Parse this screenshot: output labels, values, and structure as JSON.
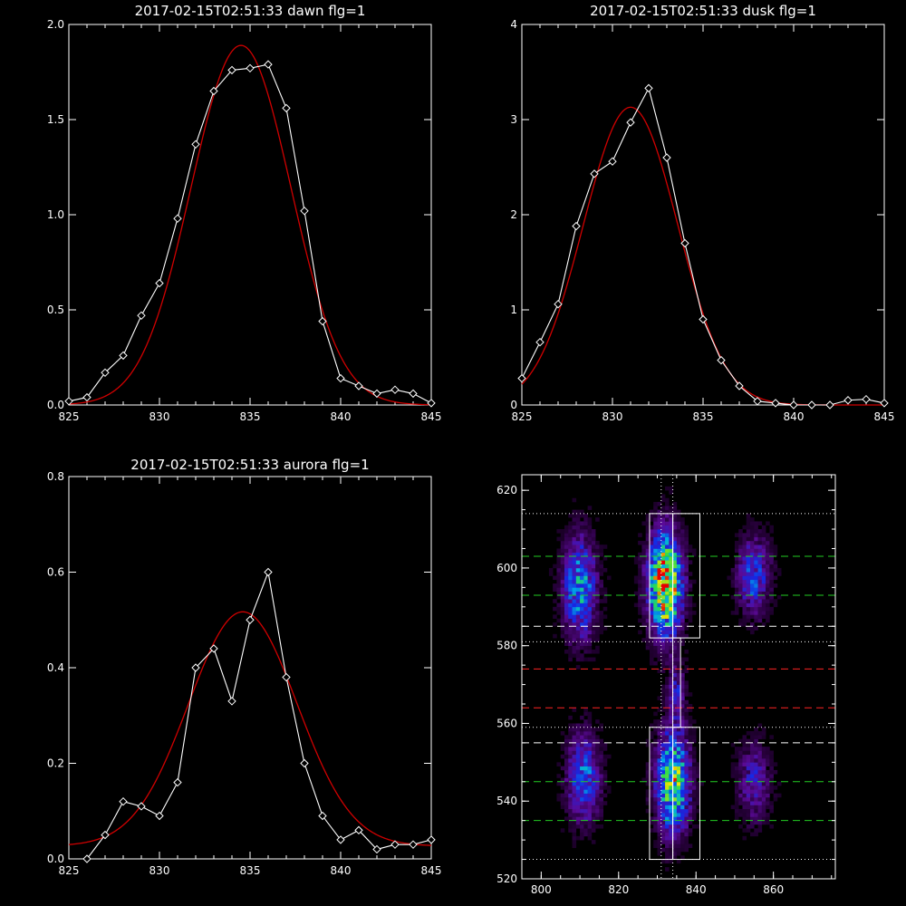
{
  "colors": {
    "background": "#000000",
    "axes": "#ffffff",
    "observed": "#ffffff",
    "fit": "#d00000",
    "green_band": "#22cc22",
    "red_band": "#ff2222",
    "white_band": "#ffffff"
  },
  "chart_data": [
    {
      "type": "line",
      "title": "2017-02-15T02:51:33 dawn flg=1",
      "xlim": [
        825,
        845
      ],
      "ylim": [
        0,
        2.0
      ],
      "xticks": [
        "825",
        "830",
        "835",
        "840",
        "845"
      ],
      "yticks": [
        "0.0",
        "0.5",
        "1.0",
        "1.5",
        "2.0"
      ],
      "xtick_values": [
        825,
        830,
        835,
        840,
        845
      ],
      "ytick_values": [
        0,
        0.5,
        1.0,
        1.5,
        2.0
      ],
      "observed": {
        "x": [
          825,
          826,
          827,
          828,
          829,
          830,
          831,
          832,
          833,
          834,
          835,
          836,
          837,
          838,
          839,
          840,
          841,
          842,
          843,
          844,
          845
        ],
        "y": [
          0.02,
          0.04,
          0.17,
          0.26,
          0.47,
          0.64,
          0.98,
          1.37,
          1.65,
          1.76,
          1.77,
          1.79,
          1.56,
          1.02,
          0.44,
          0.14,
          0.1,
          0.06,
          0.08,
          0.06,
          0.01
        ],
        "markers": "diamond"
      },
      "fit": {
        "model": "gaussian",
        "amplitude": 1.89,
        "center": 834.5,
        "sigma": 2.75,
        "offset": 0.0
      }
    },
    {
      "type": "line",
      "title": "2017-02-15T02:51:33 dusk flg=1",
      "xlim": [
        825,
        845
      ],
      "ylim": [
        0,
        4.0
      ],
      "xticks": [
        "825",
        "830",
        "835",
        "840",
        "845"
      ],
      "yticks": [
        "0",
        "1",
        "2",
        "3",
        "4"
      ],
      "xtick_values": [
        825,
        830,
        835,
        840,
        845
      ],
      "ytick_values": [
        0,
        1,
        2,
        3,
        4
      ],
      "observed": {
        "x": [
          825,
          826,
          827,
          828,
          829,
          830,
          831,
          832,
          833,
          834,
          835,
          836,
          837,
          838,
          839,
          840,
          841,
          842,
          843,
          844,
          845
        ],
        "y": [
          0.28,
          0.66,
          1.06,
          1.88,
          2.43,
          2.56,
          2.97,
          3.33,
          2.6,
          1.7,
          0.9,
          0.47,
          0.2,
          0.04,
          0.02,
          0.0,
          0.0,
          0.0,
          0.05,
          0.06,
          0.02
        ],
        "markers": "diamond"
      },
      "fit": {
        "model": "gaussian",
        "amplitude": 3.13,
        "center": 831.0,
        "sigma": 2.6,
        "offset": 0.0
      }
    },
    {
      "type": "line",
      "title": "2017-02-15T02:51:33 aurora flg=1",
      "xlim": [
        825,
        845
      ],
      "ylim": [
        0,
        0.8
      ],
      "xticks": [
        "825",
        "830",
        "835",
        "840",
        "845"
      ],
      "yticks": [
        "0.0",
        "0.2",
        "0.4",
        "0.6",
        "0.8"
      ],
      "xtick_values": [
        825,
        830,
        835,
        840,
        845
      ],
      "ytick_values": [
        0,
        0.2,
        0.4,
        0.6,
        0.8
      ],
      "observed": {
        "x": [
          826,
          827,
          828,
          829,
          830,
          831,
          832,
          833,
          834,
          835,
          836,
          837,
          838,
          839,
          840,
          841,
          842,
          843,
          844,
          845
        ],
        "y": [
          0.0,
          0.05,
          0.12,
          0.11,
          0.09,
          0.16,
          0.4,
          0.44,
          0.33,
          0.5,
          0.6,
          0.38,
          0.2,
          0.09,
          0.04,
          0.06,
          0.02,
          0.03,
          0.03,
          0.04
        ],
        "markers": "diamond"
      },
      "fit": {
        "model": "gaussian",
        "amplitude": 0.49,
        "center": 834.6,
        "sigma": 3.0,
        "offset": 0.027
      }
    },
    {
      "type": "heatmap",
      "title": "",
      "xlim": [
        795,
        876
      ],
      "ylim": [
        520,
        624
      ],
      "xticks": [
        "800",
        "820",
        "840",
        "860"
      ],
      "yticks": [
        "520",
        "540",
        "560",
        "580",
        "600",
        "620"
      ],
      "xtick_values": [
        800,
        820,
        840,
        860
      ],
      "ytick_values": [
        520,
        540,
        560,
        580,
        600,
        620
      ],
      "colormap": "rainbow",
      "boxes": [
        {
          "x": [
            828,
            834
          ],
          "y": [
            582,
            614
          ]
        },
        {
          "x": [
            834,
            841
          ],
          "y": [
            582,
            614
          ]
        },
        {
          "x": [
            834,
            836
          ],
          "y": [
            559,
            582
          ]
        },
        {
          "x": [
            828,
            834
          ],
          "y": [
            525,
            559
          ]
        },
        {
          "x": [
            834,
            841
          ],
          "y": [
            525,
            559
          ]
        }
      ],
      "vertical_dotted": [
        831,
        834
      ],
      "horizontal_lines": [
        {
          "y": 614,
          "style": "dotted",
          "color": "white"
        },
        {
          "y": 603,
          "style": "dashed",
          "color": "green"
        },
        {
          "y": 593,
          "style": "dashed",
          "color": "green"
        },
        {
          "y": 585,
          "style": "dashed",
          "color": "white"
        },
        {
          "y": 581,
          "style": "dotted",
          "color": "white"
        },
        {
          "y": 574,
          "style": "dashed",
          "color": "red"
        },
        {
          "y": 564,
          "style": "dashed",
          "color": "red"
        },
        {
          "y": 559,
          "style": "dotted",
          "color": "white"
        },
        {
          "y": 555,
          "style": "dashed",
          "color": "white"
        },
        {
          "y": 545,
          "style": "dashed",
          "color": "green"
        },
        {
          "y": 535,
          "style": "dashed",
          "color": "green"
        },
        {
          "y": 525,
          "style": "dotted",
          "color": "white"
        }
      ],
      "blobs": [
        {
          "cx": 810,
          "cy": 595,
          "sx": 3.0,
          "sy": 9.0,
          "amp": 0.55
        },
        {
          "cx": 832,
          "cy": 596,
          "sx": 3.0,
          "sy": 9.0,
          "amp": 1.0
        },
        {
          "cx": 855,
          "cy": 598,
          "sx": 3.0,
          "sy": 7.0,
          "amp": 0.4
        },
        {
          "cx": 811,
          "cy": 546,
          "sx": 3.0,
          "sy": 8.0,
          "amp": 0.45
        },
        {
          "cx": 834,
          "cy": 545,
          "sx": 3.0,
          "sy": 9.0,
          "amp": 0.75
        },
        {
          "cx": 855,
          "cy": 545,
          "sx": 3.0,
          "sy": 7.0,
          "amp": 0.3
        },
        {
          "cx": 835,
          "cy": 568,
          "sx": 1.5,
          "sy": 5.0,
          "amp": 0.28
        }
      ]
    }
  ]
}
